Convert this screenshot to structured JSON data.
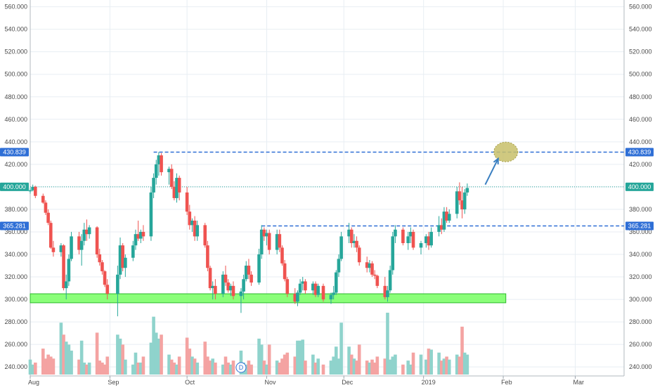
{
  "chart_data": {
    "type": "candlestick",
    "y_axis": {
      "min": 232,
      "max": 566,
      "ticks": [
        240,
        260,
        280,
        300,
        320,
        340,
        360,
        380,
        400,
        420,
        440,
        460,
        480,
        500,
        520,
        540,
        560
      ],
      "tick_labels": [
        "240.000",
        "260.000",
        "280.000",
        "300.000",
        "320.000",
        "340.000",
        "360.000",
        "380.000",
        "400.000",
        "420.000",
        "440.000",
        "460.000",
        "480.000",
        "500.000",
        "520.000",
        "540.000",
        "560.000"
      ],
      "sides": "both"
    },
    "x_axis": {
      "start": "2018-08-01",
      "end": "2019-03-20",
      "labels": [
        {
          "date": "2018-08-01",
          "text": "Aug"
        },
        {
          "date": "2018-09-01",
          "text": "Sep"
        },
        {
          "date": "2018-10-01",
          "text": "Oct"
        },
        {
          "date": "2018-11-01",
          "text": "Nov"
        },
        {
          "date": "2018-12-01",
          "text": "Dec"
        },
        {
          "date": "2019-01-01",
          "text": "2019"
        },
        {
          "date": "2019-02-01",
          "text": "Feb"
        },
        {
          "date": "2019-03-01",
          "text": "Mar"
        }
      ]
    },
    "grid": true,
    "colors": {
      "up": "#26a69a",
      "down": "#ef5350",
      "vol_up": "#8fd3cc",
      "vol_down": "#f4a3a2",
      "grid": "#e8eef3",
      "level_line": "#2f6fd6",
      "current_price": "#26a69a",
      "support_zone": "#7dff6a",
      "support_border": "#2bb82b",
      "target_circle": "#c8c06a",
      "arrow": "#3a7fc1"
    },
    "price_labels": [
      {
        "value": 430.839,
        "text": "430.839",
        "color": "#2f6fd6"
      },
      {
        "value": 400.0,
        "text": "400.000",
        "color": "#26a69a"
      },
      {
        "value": 365.281,
        "text": "365.281",
        "color": "#2f6fd6"
      }
    ],
    "resistance_lines": [
      {
        "value": 430.839,
        "from": "2018-09-18",
        "to": "2019-03-20"
      },
      {
        "value": 365.281,
        "from": "2018-10-30",
        "to": "2019-03-20"
      }
    ],
    "current_price_line": {
      "value": 400.0
    },
    "support_zone": {
      "from": "2018-08-01",
      "to": "2019-02-02",
      "low": 297,
      "high": 305
    },
    "target": {
      "date": "2019-02-02",
      "value": 431
    },
    "arrow": {
      "from_date": "2019-01-25",
      "from_value": 402,
      "to_date": "2019-01-30",
      "to_value": 425
    },
    "event_marker": {
      "date": "2018-10-22",
      "text": "D"
    },
    "series": [
      {
        "d": "2018-08-01",
        "o": 396,
        "h": 399,
        "l": 394,
        "c": 397,
        "v": 15
      },
      {
        "d": "2018-08-02",
        "o": 397,
        "h": 402,
        "l": 396,
        "c": 400,
        "v": 10
      },
      {
        "d": "2018-08-03",
        "o": 400,
        "h": 401,
        "l": 390,
        "c": 392,
        "v": 12
      },
      {
        "d": "2018-08-06",
        "o": 392,
        "h": 394,
        "l": 385,
        "c": 386,
        "v": 26
      },
      {
        "d": "2018-08-07",
        "o": 386,
        "h": 388,
        "l": 375,
        "c": 377,
        "v": 16
      },
      {
        "d": "2018-08-08",
        "o": 377,
        "h": 380,
        "l": 366,
        "c": 368,
        "v": 20
      },
      {
        "d": "2018-08-09",
        "o": 368,
        "h": 370,
        "l": 345,
        "c": 346,
        "v": 18
      },
      {
        "d": "2018-08-10",
        "o": 346,
        "h": 352,
        "l": 338,
        "c": 342,
        "v": 16
      },
      {
        "d": "2018-08-13",
        "o": 342,
        "h": 350,
        "l": 338,
        "c": 348,
        "v": 52
      },
      {
        "d": "2018-08-14",
        "o": 348,
        "h": 349,
        "l": 308,
        "c": 310,
        "v": 40
      },
      {
        "d": "2018-08-15",
        "o": 310,
        "h": 322,
        "l": 300,
        "c": 316,
        "v": 33
      },
      {
        "d": "2018-08-16",
        "o": 316,
        "h": 340,
        "l": 312,
        "c": 336,
        "v": 30
      },
      {
        "d": "2018-08-17",
        "o": 336,
        "h": 360,
        "l": 334,
        "c": 356,
        "v": 24
      },
      {
        "d": "2018-08-20",
        "o": 356,
        "h": 360,
        "l": 340,
        "c": 344,
        "v": 15
      },
      {
        "d": "2018-08-21",
        "o": 344,
        "h": 358,
        "l": 330,
        "c": 352,
        "v": 34
      },
      {
        "d": "2018-08-22",
        "o": 352,
        "h": 368,
        "l": 348,
        "c": 362,
        "v": 12
      },
      {
        "d": "2018-08-23",
        "o": 362,
        "h": 371,
        "l": 352,
        "c": 358,
        "v": 10
      },
      {
        "d": "2018-08-24",
        "o": 358,
        "h": 366,
        "l": 354,
        "c": 364,
        "v": 12
      },
      {
        "d": "2018-08-27",
        "o": 364,
        "h": 365,
        "l": 337,
        "c": 340,
        "v": 42
      },
      {
        "d": "2018-08-28",
        "o": 340,
        "h": 345,
        "l": 330,
        "c": 333,
        "v": 14
      },
      {
        "d": "2018-08-29",
        "o": 333,
        "h": 335,
        "l": 322,
        "c": 325,
        "v": 12
      },
      {
        "d": "2018-08-30",
        "o": 325,
        "h": 326,
        "l": 311,
        "c": 313,
        "v": 10
      },
      {
        "d": "2018-08-31",
        "o": 313,
        "h": 318,
        "l": 300,
        "c": 305,
        "v": 18
      },
      {
        "d": "2018-09-04",
        "o": 305,
        "h": 330,
        "l": 285,
        "c": 322,
        "v": 40
      },
      {
        "d": "2018-09-05",
        "o": 322,
        "h": 355,
        "l": 318,
        "c": 348,
        "v": 36
      },
      {
        "d": "2018-09-06",
        "o": 348,
        "h": 350,
        "l": 325,
        "c": 328,
        "v": 30
      },
      {
        "d": "2018-09-07",
        "o": 328,
        "h": 340,
        "l": 320,
        "c": 337,
        "v": 15
      },
      {
        "d": "2018-09-10",
        "o": 337,
        "h": 352,
        "l": 334,
        "c": 348,
        "v": 10
      },
      {
        "d": "2018-09-11",
        "o": 348,
        "h": 362,
        "l": 344,
        "c": 358,
        "v": 22
      },
      {
        "d": "2018-09-12",
        "o": 358,
        "h": 370,
        "l": 352,
        "c": 354,
        "v": 12
      },
      {
        "d": "2018-09-13",
        "o": 354,
        "h": 362,
        "l": 350,
        "c": 360,
        "v": 12
      },
      {
        "d": "2018-09-14",
        "o": 360,
        "h": 366,
        "l": 352,
        "c": 356,
        "v": 18
      },
      {
        "d": "2018-09-17",
        "o": 356,
        "h": 400,
        "l": 352,
        "c": 395,
        "v": 32
      },
      {
        "d": "2018-09-18",
        "o": 395,
        "h": 412,
        "l": 390,
        "c": 408,
        "v": 58
      },
      {
        "d": "2018-09-19",
        "o": 408,
        "h": 424,
        "l": 402,
        "c": 420,
        "v": 42
      },
      {
        "d": "2018-09-20",
        "o": 420,
        "h": 431,
        "l": 410,
        "c": 428,
        "v": 36
      },
      {
        "d": "2018-09-21",
        "o": 428,
        "h": 430,
        "l": 410,
        "c": 413,
        "v": 40
      },
      {
        "d": "2018-09-24",
        "o": 413,
        "h": 418,
        "l": 402,
        "c": 416,
        "v": 20
      },
      {
        "d": "2018-09-25",
        "o": 416,
        "h": 420,
        "l": 398,
        "c": 400,
        "v": 15
      },
      {
        "d": "2018-09-26",
        "o": 400,
        "h": 405,
        "l": 388,
        "c": 390,
        "v": 12
      },
      {
        "d": "2018-09-27",
        "o": 390,
        "h": 412,
        "l": 386,
        "c": 408,
        "v": 10
      },
      {
        "d": "2018-09-28",
        "o": 408,
        "h": 410,
        "l": 388,
        "c": 395,
        "v": 18
      },
      {
        "d": "2018-10-01",
        "o": 395,
        "h": 400,
        "l": 375,
        "c": 378,
        "v": 37
      },
      {
        "d": "2018-10-02",
        "o": 378,
        "h": 384,
        "l": 362,
        "c": 366,
        "v": 26
      },
      {
        "d": "2018-10-03",
        "o": 366,
        "h": 372,
        "l": 360,
        "c": 370,
        "v": 18
      },
      {
        "d": "2018-10-04",
        "o": 370,
        "h": 374,
        "l": 352,
        "c": 356,
        "v": 16
      },
      {
        "d": "2018-10-05",
        "o": 356,
        "h": 370,
        "l": 352,
        "c": 366,
        "v": 12
      },
      {
        "d": "2018-10-08",
        "o": 366,
        "h": 368,
        "l": 346,
        "c": 348,
        "v": 33
      },
      {
        "d": "2018-10-09",
        "o": 348,
        "h": 352,
        "l": 325,
        "c": 328,
        "v": 18
      },
      {
        "d": "2018-10-10",
        "o": 328,
        "h": 330,
        "l": 308,
        "c": 310,
        "v": 14
      },
      {
        "d": "2018-10-11",
        "o": 310,
        "h": 316,
        "l": 300,
        "c": 312,
        "v": 16
      },
      {
        "d": "2018-10-12",
        "o": 312,
        "h": 318,
        "l": 300,
        "c": 305,
        "v": 12
      },
      {
        "d": "2018-10-15",
        "o": 305,
        "h": 325,
        "l": 302,
        "c": 322,
        "v": 10
      },
      {
        "d": "2018-10-16",
        "o": 322,
        "h": 330,
        "l": 312,
        "c": 315,
        "v": 18
      },
      {
        "d": "2018-10-17",
        "o": 315,
        "h": 318,
        "l": 306,
        "c": 308,
        "v": 12
      },
      {
        "d": "2018-10-18",
        "o": 308,
        "h": 314,
        "l": 303,
        "c": 312,
        "v": 10
      },
      {
        "d": "2018-10-19",
        "o": 312,
        "h": 316,
        "l": 300,
        "c": 303,
        "v": 14
      },
      {
        "d": "2018-10-22",
        "o": 303,
        "h": 310,
        "l": 288,
        "c": 307,
        "v": 24
      },
      {
        "d": "2018-10-23",
        "o": 307,
        "h": 322,
        "l": 300,
        "c": 318,
        "v": 12
      },
      {
        "d": "2018-10-24",
        "o": 318,
        "h": 334,
        "l": 316,
        "c": 330,
        "v": 10
      },
      {
        "d": "2018-10-25",
        "o": 330,
        "h": 336,
        "l": 318,
        "c": 322,
        "v": 14
      },
      {
        "d": "2018-10-26",
        "o": 322,
        "h": 325,
        "l": 312,
        "c": 315,
        "v": 10
      },
      {
        "d": "2018-10-29",
        "o": 315,
        "h": 345,
        "l": 313,
        "c": 340,
        "v": 36
      },
      {
        "d": "2018-10-30",
        "o": 340,
        "h": 366,
        "l": 336,
        "c": 362,
        "v": 30
      },
      {
        "d": "2018-10-31",
        "o": 362,
        "h": 364,
        "l": 352,
        "c": 356,
        "v": 14
      },
      {
        "d": "2018-11-01",
        "o": 356,
        "h": 362,
        "l": 348,
        "c": 359,
        "v": 10
      },
      {
        "d": "2018-11-02",
        "o": 359,
        "h": 362,
        "l": 340,
        "c": 344,
        "v": 30
      },
      {
        "d": "2018-11-05",
        "o": 344,
        "h": 362,
        "l": 340,
        "c": 358,
        "v": 14
      },
      {
        "d": "2018-11-06",
        "o": 358,
        "h": 362,
        "l": 342,
        "c": 346,
        "v": 12
      },
      {
        "d": "2018-11-07",
        "o": 346,
        "h": 348,
        "l": 330,
        "c": 332,
        "v": 16
      },
      {
        "d": "2018-11-08",
        "o": 332,
        "h": 335,
        "l": 316,
        "c": 318,
        "v": 20
      },
      {
        "d": "2018-11-09",
        "o": 318,
        "h": 320,
        "l": 302,
        "c": 305,
        "v": 22
      },
      {
        "d": "2018-11-12",
        "o": 305,
        "h": 310,
        "l": 296,
        "c": 298,
        "v": 18
      },
      {
        "d": "2018-11-13",
        "o": 298,
        "h": 308,
        "l": 294,
        "c": 306,
        "v": 34
      },
      {
        "d": "2018-11-14",
        "o": 306,
        "h": 318,
        "l": 304,
        "c": 314,
        "v": 34
      },
      {
        "d": "2018-11-15",
        "o": 314,
        "h": 320,
        "l": 308,
        "c": 316,
        "v": 35
      },
      {
        "d": "2018-11-16",
        "o": 316,
        "h": 318,
        "l": 305,
        "c": 308,
        "v": 14
      },
      {
        "d": "2018-11-19",
        "o": 308,
        "h": 316,
        "l": 304,
        "c": 314,
        "v": 20
      },
      {
        "d": "2018-11-20",
        "o": 314,
        "h": 316,
        "l": 302,
        "c": 304,
        "v": 12
      },
      {
        "d": "2018-11-21",
        "o": 304,
        "h": 314,
        "l": 302,
        "c": 312,
        "v": 16
      },
      {
        "d": "2018-11-23",
        "o": 312,
        "h": 314,
        "l": 298,
        "c": 300,
        "v": 10
      },
      {
        "d": "2018-11-26",
        "o": 300,
        "h": 306,
        "l": 296,
        "c": 304,
        "v": 14
      },
      {
        "d": "2018-11-27",
        "o": 304,
        "h": 312,
        "l": 300,
        "c": 306,
        "v": 18
      },
      {
        "d": "2018-11-28",
        "o": 306,
        "h": 326,
        "l": 304,
        "c": 324,
        "v": 28
      },
      {
        "d": "2018-11-29",
        "o": 324,
        "h": 340,
        "l": 320,
        "c": 336,
        "v": 16
      },
      {
        "d": "2018-11-30",
        "o": 336,
        "h": 360,
        "l": 334,
        "c": 356,
        "v": 52
      },
      {
        "d": "2018-12-03",
        "o": 356,
        "h": 368,
        "l": 350,
        "c": 362,
        "v": 28
      },
      {
        "d": "2018-12-04",
        "o": 362,
        "h": 364,
        "l": 346,
        "c": 350,
        "v": 20
      },
      {
        "d": "2018-12-05",
        "o": 350,
        "h": 358,
        "l": 346,
        "c": 352,
        "v": 16
      },
      {
        "d": "2018-12-06",
        "o": 352,
        "h": 356,
        "l": 342,
        "c": 346,
        "v": 14
      },
      {
        "d": "2018-12-07",
        "o": 346,
        "h": 348,
        "l": 330,
        "c": 333,
        "v": 30
      },
      {
        "d": "2018-12-10",
        "o": 333,
        "h": 338,
        "l": 324,
        "c": 328,
        "v": 14
      },
      {
        "d": "2018-12-11",
        "o": 328,
        "h": 335,
        "l": 324,
        "c": 332,
        "v": 12
      },
      {
        "d": "2018-12-12",
        "o": 332,
        "h": 334,
        "l": 320,
        "c": 322,
        "v": 15
      },
      {
        "d": "2018-12-13",
        "o": 322,
        "h": 326,
        "l": 318,
        "c": 321,
        "v": 12
      },
      {
        "d": "2018-12-14",
        "o": 321,
        "h": 322,
        "l": 310,
        "c": 312,
        "v": 18
      },
      {
        "d": "2018-12-17",
        "o": 312,
        "h": 320,
        "l": 300,
        "c": 302,
        "v": 16
      },
      {
        "d": "2018-12-18",
        "o": 302,
        "h": 312,
        "l": 298,
        "c": 308,
        "v": 62
      },
      {
        "d": "2018-12-19",
        "o": 308,
        "h": 330,
        "l": 306,
        "c": 326,
        "v": 15
      },
      {
        "d": "2018-12-20",
        "o": 326,
        "h": 360,
        "l": 322,
        "c": 356,
        "v": 18
      },
      {
        "d": "2018-12-21",
        "o": 356,
        "h": 366,
        "l": 350,
        "c": 362,
        "v": 20
      },
      {
        "d": "2018-12-24",
        "o": 362,
        "h": 364,
        "l": 348,
        "c": 350,
        "v": 10
      },
      {
        "d": "2018-12-26",
        "o": 350,
        "h": 360,
        "l": 344,
        "c": 356,
        "v": 14
      },
      {
        "d": "2018-12-27",
        "o": 356,
        "h": 364,
        "l": 350,
        "c": 360,
        "v": 10
      },
      {
        "d": "2018-12-28",
        "o": 360,
        "h": 362,
        "l": 344,
        "c": 346,
        "v": 22
      },
      {
        "d": "2018-12-31",
        "o": 346,
        "h": 352,
        "l": 340,
        "c": 350,
        "v": 20
      },
      {
        "d": "2019-01-02",
        "o": 350,
        "h": 358,
        "l": 346,
        "c": 356,
        "v": 15
      },
      {
        "d": "2019-01-03",
        "o": 356,
        "h": 360,
        "l": 344,
        "c": 348,
        "v": 26
      },
      {
        "d": "2019-01-04",
        "o": 348,
        "h": 364,
        "l": 346,
        "c": 360,
        "v": 25
      },
      {
        "d": "2019-01-07",
        "o": 360,
        "h": 374,
        "l": 356,
        "c": 366,
        "v": 22
      },
      {
        "d": "2019-01-08",
        "o": 366,
        "h": 372,
        "l": 358,
        "c": 362,
        "v": 14
      },
      {
        "d": "2019-01-09",
        "o": 362,
        "h": 382,
        "l": 360,
        "c": 378,
        "v": 16
      },
      {
        "d": "2019-01-10",
        "o": 378,
        "h": 382,
        "l": 368,
        "c": 370,
        "v": 18
      },
      {
        "d": "2019-01-11",
        "o": 370,
        "h": 380,
        "l": 368,
        "c": 376,
        "v": 15
      },
      {
        "d": "2019-01-14",
        "o": 376,
        "h": 400,
        "l": 372,
        "c": 396,
        "v": 20
      },
      {
        "d": "2019-01-15",
        "o": 396,
        "h": 404,
        "l": 384,
        "c": 388,
        "v": 18
      },
      {
        "d": "2019-01-16",
        "o": 388,
        "h": 400,
        "l": 372,
        "c": 380,
        "v": 48
      },
      {
        "d": "2019-01-17",
        "o": 380,
        "h": 398,
        "l": 376,
        "c": 395,
        "v": 22
      },
      {
        "d": "2019-01-18",
        "o": 395,
        "h": 403,
        "l": 392,
        "c": 399,
        "v": 20
      }
    ]
  }
}
